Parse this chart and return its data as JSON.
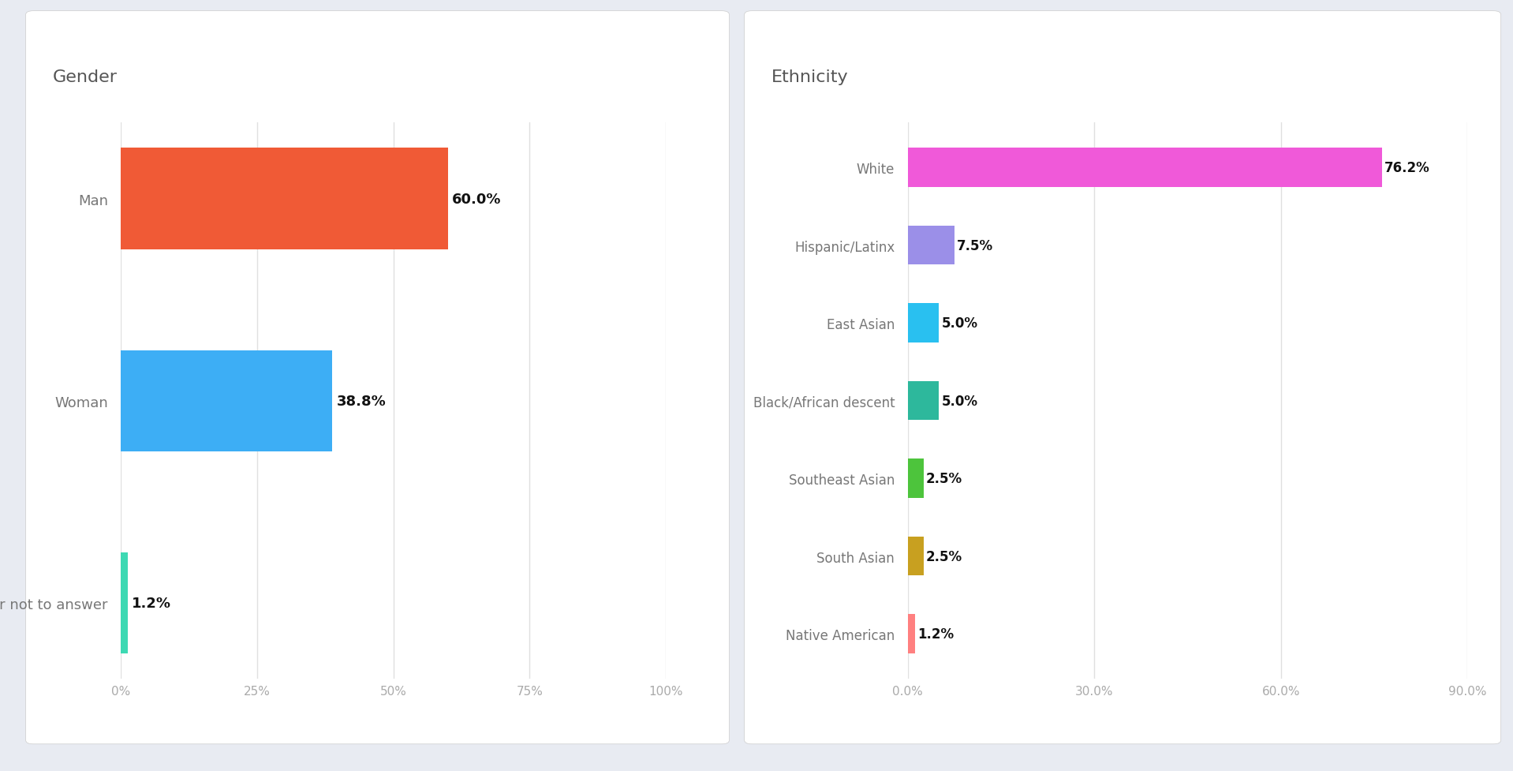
{
  "gender": {
    "title": "Gender",
    "categories": [
      "Man",
      "Woman",
      "Prefer not to answer"
    ],
    "values": [
      60.0,
      38.8,
      1.2
    ],
    "colors": [
      "#F05A36",
      "#3DAEF5",
      "#3DD9B3"
    ],
    "xlim": [
      0,
      100
    ],
    "xticks": [
      0,
      25,
      50,
      75,
      100
    ],
    "xticklabels": [
      "0%",
      "25%",
      "50%",
      "75%",
      "100%"
    ]
  },
  "ethnicity": {
    "title": "Ethnicity",
    "categories": [
      "White",
      "Hispanic/Latinx",
      "East Asian",
      "Black/African descent",
      "Southeast Asian",
      "South Asian",
      "Native American"
    ],
    "values": [
      76.2,
      7.5,
      5.0,
      5.0,
      2.5,
      2.5,
      1.2
    ],
    "colors": [
      "#F059D9",
      "#9B8FE8",
      "#29C0F0",
      "#2DB89C",
      "#4DC43C",
      "#C8A020",
      "#FF8080"
    ],
    "xlim": [
      0,
      90
    ],
    "xticks": [
      0,
      30,
      60,
      90
    ],
    "xticklabels": [
      "0.0%",
      "30.0%",
      "60.0%",
      "90.0%"
    ]
  },
  "bg_color": "#E8EBF2",
  "panel_color": "#FFFFFF",
  "title_color": "#555555",
  "label_color": "#777777",
  "tick_color": "#aaaaaa",
  "value_label_color": "#111111",
  "grid_color": "#E0E0E0"
}
